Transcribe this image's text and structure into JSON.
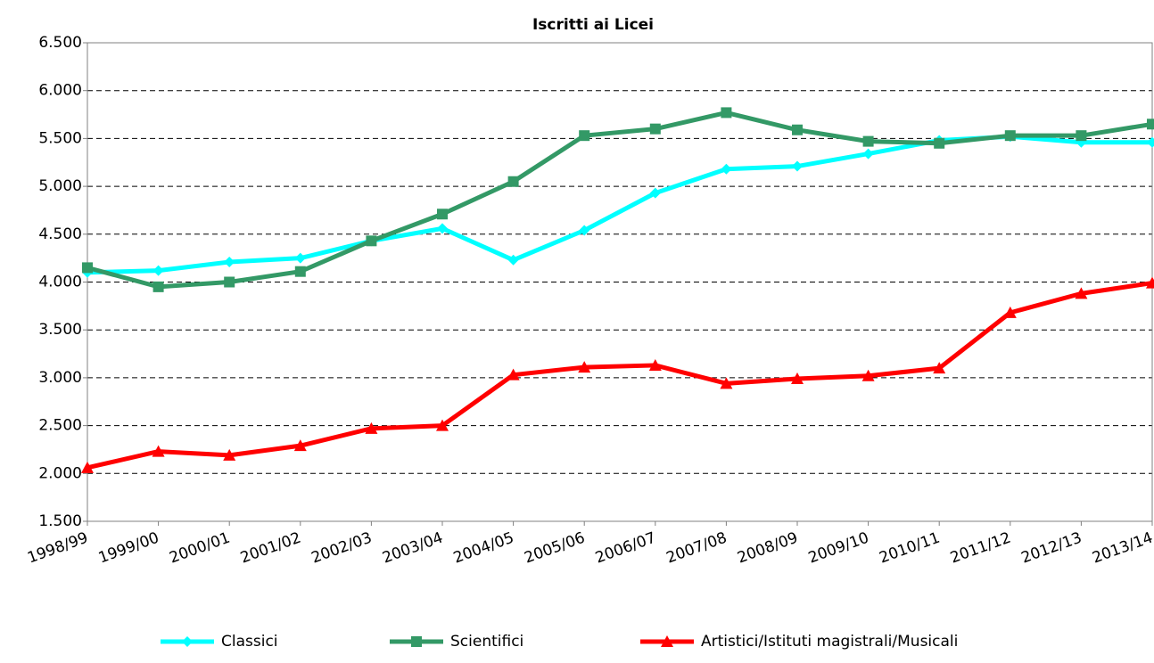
{
  "chart_data": {
    "type": "line",
    "title": "Iscritti ai Licei",
    "categories": [
      "1998/99",
      "1999/00",
      "2000/01",
      "2001/02",
      "2002/03",
      "2003/04",
      "2004/05",
      "2005/06",
      "2006/07",
      "2007/08",
      "2008/09",
      "2009/10",
      "2010/11",
      "2011/12",
      "2012/13",
      "2013/14"
    ],
    "series": [
      {
        "name": "Classici",
        "color": "#00ffff",
        "marker": "diamond",
        "values": [
          4100,
          4120,
          4210,
          4250,
          4430,
          4560,
          4230,
          4540,
          4930,
          5180,
          5210,
          5340,
          5480,
          5520,
          5460,
          5460
        ]
      },
      {
        "name": "Scientifici",
        "color": "#339966",
        "marker": "square",
        "values": [
          4150,
          3950,
          4000,
          4110,
          4430,
          4710,
          5050,
          5530,
          5600,
          5770,
          5590,
          5470,
          5450,
          5530,
          5530,
          5650
        ]
      },
      {
        "name": "Artistici/Istituti magistrali/Musicali",
        "color": "#ff0000",
        "marker": "triangle",
        "values": [
          2060,
          2230,
          2190,
          2290,
          2470,
          2500,
          3030,
          3110,
          3130,
          2940,
          2990,
          3020,
          3100,
          3680,
          3880,
          3990
        ]
      }
    ],
    "ylim": [
      1500,
      6500
    ],
    "yticks": [
      {
        "value": 1500,
        "label": "1.500"
      },
      {
        "value": 2000,
        "label": "2.000"
      },
      {
        "value": 2500,
        "label": "2.500"
      },
      {
        "value": 3000,
        "label": "3.000"
      },
      {
        "value": 3500,
        "label": "3.500"
      },
      {
        "value": 4000,
        "label": "4.000"
      },
      {
        "value": 4500,
        "label": "4.500"
      },
      {
        "value": 5000,
        "label": "5.000"
      },
      {
        "value": 5500,
        "label": "5.500"
      },
      {
        "value": 6000,
        "label": "6.000"
      },
      {
        "value": 6500,
        "label": "6.500"
      }
    ],
    "grid": true,
    "legend": "bottom"
  }
}
